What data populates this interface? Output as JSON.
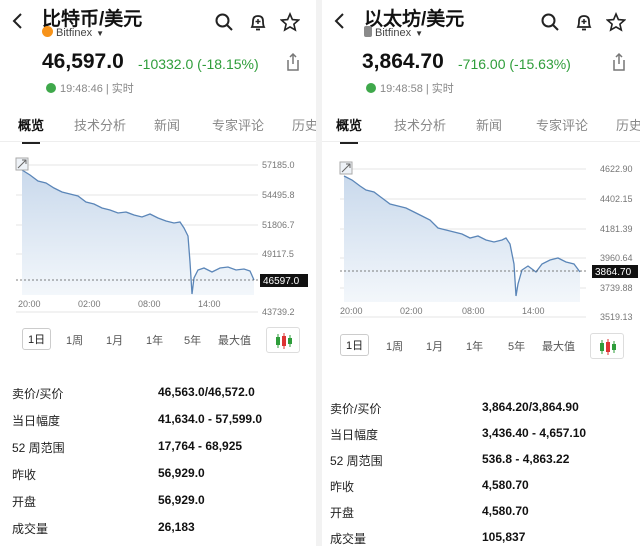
{
  "left": {
    "title": "比特币/美元",
    "exchange": "Bitfinex",
    "price": "46,597.0",
    "change": "-10332.0 (-18.15%)",
    "time": "19:48:46 | 实时",
    "tabs": [
      {
        "label": "概览"
      },
      {
        "label": "技术分析"
      },
      {
        "label": "新闻"
      },
      {
        "label": "专家评论"
      },
      {
        "label": "历史"
      }
    ],
    "yaxis": [
      "57185.0",
      "54495.8",
      "51806.7",
      "49117.5",
      "43739.2"
    ],
    "xaxis": [
      "20:00",
      "02:00",
      "08:00",
      "14:00"
    ],
    "current_tag": "46597.0",
    "ranges": [
      {
        "label": "1日"
      },
      {
        "label": "1周"
      },
      {
        "label": "1月"
      },
      {
        "label": "1年"
      },
      {
        "label": "5年"
      },
      {
        "label": "最大值"
      }
    ],
    "stats": [
      {
        "label": "卖价/买价",
        "value": "46,563.0/46,572.0"
      },
      {
        "label": "当日幅度",
        "value": "41,634.0 - 57,599.0"
      },
      {
        "label": "52 周范围",
        "value": "17,764 - 68,925"
      },
      {
        "label": "昨收",
        "value": "56,929.0"
      },
      {
        "label": "开盘",
        "value": "56,929.0"
      },
      {
        "label": "成交量",
        "value": "26,183"
      }
    ]
  },
  "right": {
    "title": "以太坊/美元",
    "exchange": "Bitfinex",
    "price": "3,864.70",
    "change": "-716.00 (-15.63%)",
    "time": "19:48:58 | 实时",
    "tabs": [
      {
        "label": "概览"
      },
      {
        "label": "技术分析"
      },
      {
        "label": "新闻"
      },
      {
        "label": "专家评论"
      },
      {
        "label": "历史"
      }
    ],
    "yaxis": [
      "4622.90",
      "4402.15",
      "4181.39",
      "3960.64",
      "3739.88",
      "3519.13"
    ],
    "xaxis": [
      "20:00",
      "02:00",
      "08:00",
      "14:00"
    ],
    "current_tag": "3864.70",
    "ranges": [
      {
        "label": "1日"
      },
      {
        "label": "1周"
      },
      {
        "label": "1月"
      },
      {
        "label": "1年"
      },
      {
        "label": "5年"
      },
      {
        "label": "最大值"
      }
    ],
    "stats": [
      {
        "label": "卖价/买价",
        "value": "3,864.20/3,864.90"
      },
      {
        "label": "当日幅度",
        "value": "3,436.40 - 4,657.10"
      },
      {
        "label": "52 周范围",
        "value": "536.8 - 4,863.22"
      },
      {
        "label": "昨收",
        "value": "4,580.70"
      },
      {
        "label": "开盘",
        "value": "4,580.70"
      },
      {
        "label": "成交量",
        "value": "105,837"
      }
    ]
  },
  "colors": {
    "up": "#2e9d3a",
    "line": "#5b86b8",
    "btc": "#f7931a",
    "eth": "#8a8a8a"
  },
  "icons": [
    "back-arrow-icon",
    "search-icon",
    "bell-add-icon",
    "star-icon",
    "share-icon",
    "clock-icon",
    "candlestick-icon",
    "expand-icon"
  ]
}
